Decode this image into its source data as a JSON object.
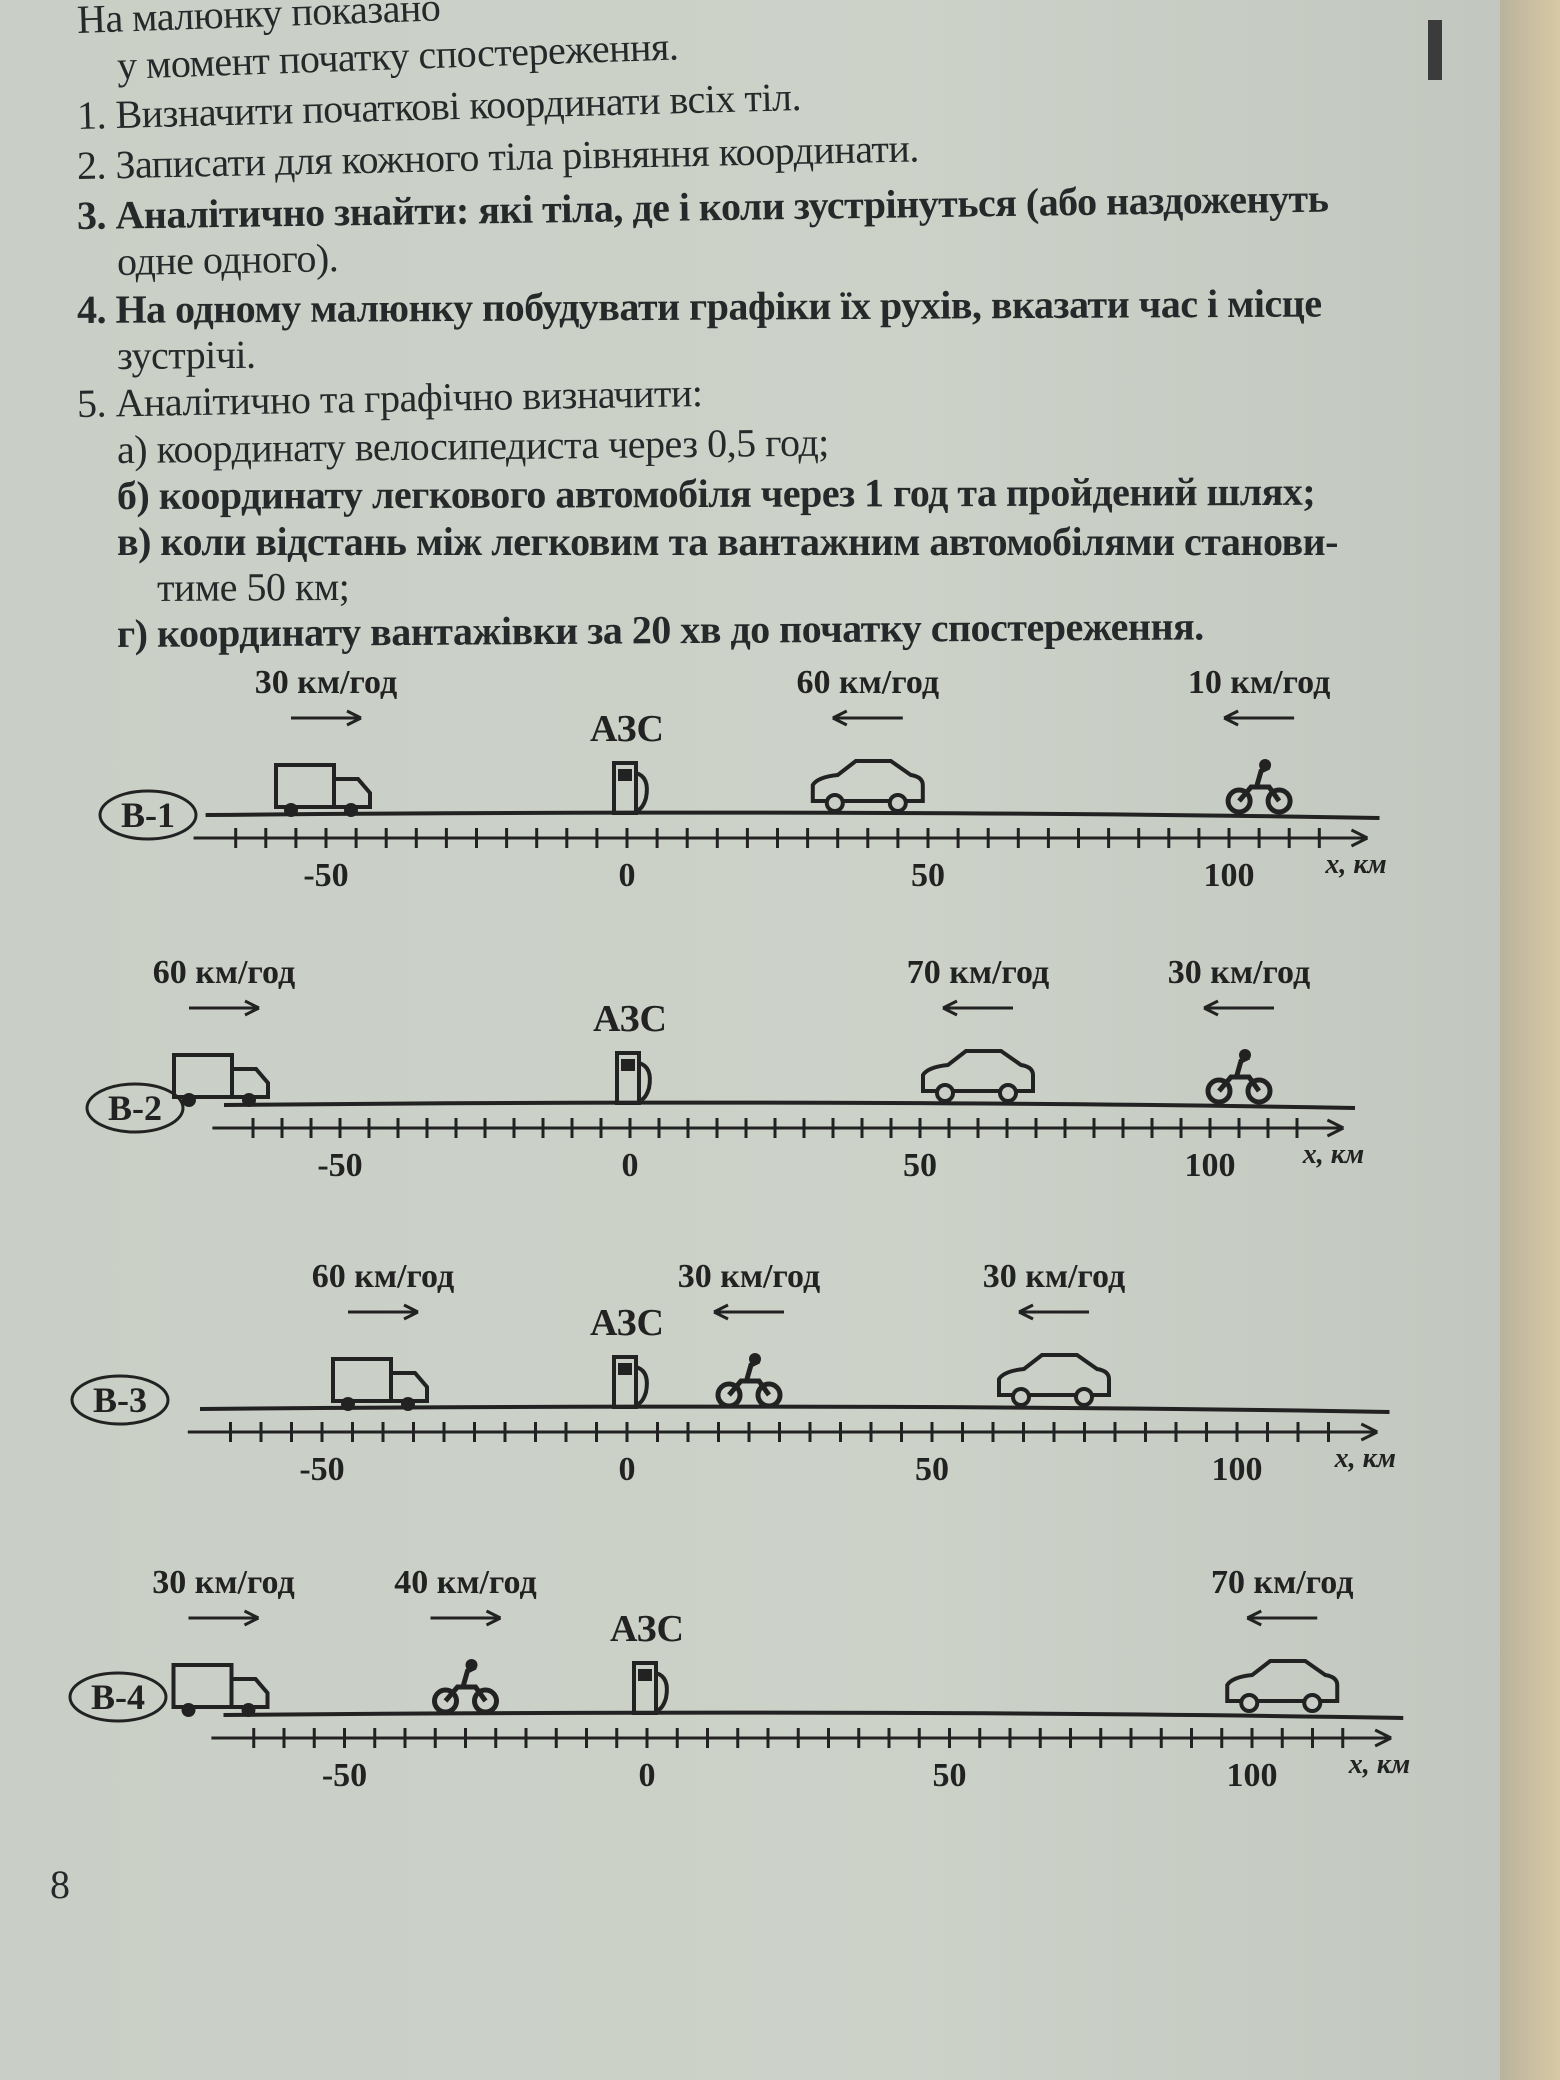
{
  "text": {
    "intro_1": "На малюнку показано",
    "intro_2": "у момент початку спостереження.",
    "item_1": "1. Визначити початкові координати всіх тіл.",
    "item_2": "2. Записати для кожного тіла рівняння координати.",
    "item_3a": "3. Аналітично знайти: які тіла, де і коли зустрінуться (або наздоженуть",
    "item_3b": "одне одного).",
    "item_4a": "4. На одному малюнку побудувати графіки їх рухів, вказати час і місце",
    "item_4b": "зустрічі.",
    "item_5": "5. Аналітично та графічно визначити:",
    "item_5a": "а) координату велосипедиста через 0,5 год;",
    "item_5b": "б) координату легкового автомобіля через 1 год та пройдений шлях;",
    "item_5c1": "в) коли відстань між легковим та вантажним автомобілями станови-",
    "item_5c2": "тиме 50 км;",
    "item_5d": "г) координату вантажівки за 20 хв до початку спостереження."
  },
  "axis": {
    "tick_labels": [
      "-50",
      "0",
      "50",
      "100"
    ],
    "tick_values": [
      -50,
      0,
      50,
      100
    ],
    "unit_label": "x, км",
    "tick_step_km": 5
  },
  "station_label": "АЗС",
  "variants": [
    {
      "label": "В-1",
      "objects": [
        {
          "type": "truck",
          "x_km": -50,
          "speed": "30 км/год",
          "direction": "right"
        },
        {
          "type": "car",
          "x_km": 40,
          "speed": "60 км/год",
          "direction": "left"
        },
        {
          "type": "motorcycle",
          "x_km": 105,
          "speed": "10 км/год",
          "direction": "left"
        }
      ]
    },
    {
      "label": "В-2",
      "objects": [
        {
          "type": "truck",
          "x_km": -70,
          "speed": "60 км/год",
          "direction": "right"
        },
        {
          "type": "car",
          "x_km": 60,
          "speed": "70 км/год",
          "direction": "left"
        },
        {
          "type": "motorcycle",
          "x_km": 105,
          "speed": "30 км/год",
          "direction": "left"
        }
      ]
    },
    {
      "label": "В-3",
      "objects": [
        {
          "type": "truck",
          "x_km": -40,
          "speed": "60 км/год",
          "direction": "right"
        },
        {
          "type": "motorcycle",
          "x_km": 20,
          "speed": "30 км/год",
          "direction": "left"
        },
        {
          "type": "car",
          "x_km": 70,
          "speed": "30 км/год",
          "direction": "left"
        }
      ]
    },
    {
      "label": "В-4",
      "objects": [
        {
          "type": "truck",
          "x_km": -70,
          "speed": "30 км/год",
          "direction": "right"
        },
        {
          "type": "motorcycle",
          "x_km": -30,
          "speed": "40 км/год",
          "direction": "right"
        },
        {
          "type": "car",
          "x_km": 105,
          "speed": "70 км/год",
          "direction": "left"
        }
      ]
    }
  ],
  "page_number": "8",
  "colors": {
    "paper": "#c9cfc6",
    "ink": "#26282a"
  }
}
